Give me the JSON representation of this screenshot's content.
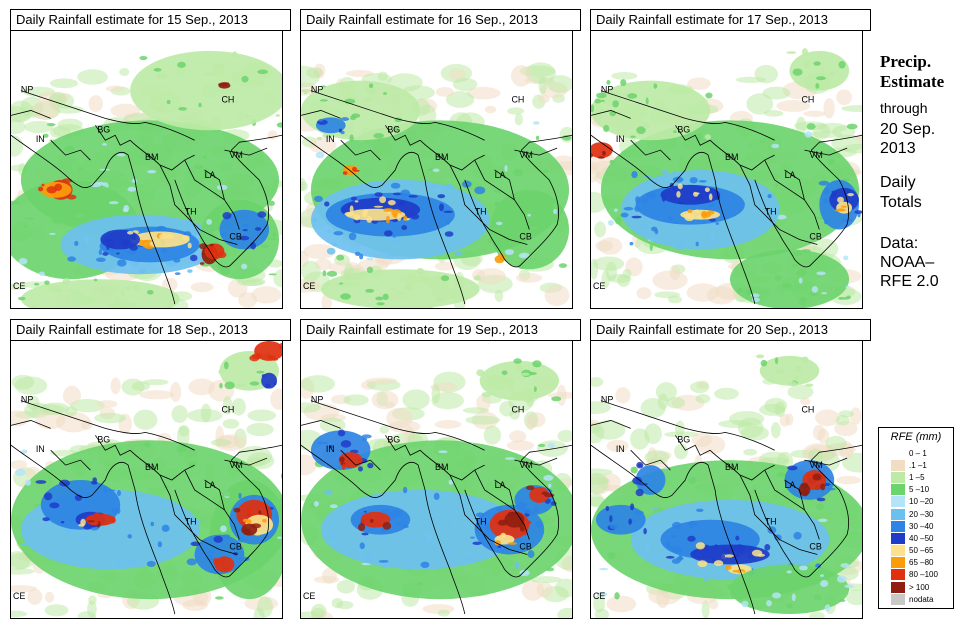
{
  "panels": [
    {
      "title": "Daily Rainfall estimate for  15 Sep., 2013"
    },
    {
      "title": "Daily Rainfall estimate for  16 Sep., 2013"
    },
    {
      "title": "Daily Rainfall estimate for  17 Sep., 2013"
    },
    {
      "title": "Daily Rainfall estimate for  18 Sep., 2013"
    },
    {
      "title": "Daily Rainfall estimate for  19 Sep., 2013"
    },
    {
      "title": "Daily Rainfall estimate for  20 Sep., 2013"
    }
  ],
  "country_labels": {
    "np": "NP",
    "ch": "CH",
    "in": "IN",
    "bg": "BG",
    "bm": "BM",
    "vm": "VM",
    "la": "LA",
    "th": "TH",
    "cb": "CB",
    "ce": "CE"
  },
  "sidebar": {
    "title_line1": "Precip.",
    "title_line2": "Estimate",
    "through": "through",
    "date_line1": "20 Sep.",
    "date_line2": "2013",
    "daily_line1": "Daily",
    "daily_line2": "Totals",
    "data_line1": "Data:",
    "data_line2": "NOAA–",
    "data_line3": "RFE 2.0"
  },
  "legend": {
    "title": "RFE (mm)",
    "items": [
      {
        "label": "0 – 1",
        "color": "#ffffff"
      },
      {
        "label": ".1 –1",
        "color": "#f1dcc4"
      },
      {
        "label": "1 –5",
        "color": "#bdeaa6"
      },
      {
        "label": "5 –10",
        "color": "#6cd46c"
      },
      {
        "label": "10 –20",
        "color": "#b4e4f8"
      },
      {
        "label": "20 –30",
        "color": "#6cc0f0"
      },
      {
        "label": "30 –40",
        "color": "#2e84e4"
      },
      {
        "label": "40 –50",
        "color": "#1e3cc8"
      },
      {
        "label": "50 –65",
        "color": "#fce28a"
      },
      {
        "label": "65 –80",
        "color": "#fc9c0a"
      },
      {
        "label": "80 –100",
        "color": "#e03010"
      },
      {
        "label": "> 100",
        "color": "#901e10"
      },
      {
        "label": "nodata",
        "color": "#c8c8c8"
      }
    ]
  }
}
